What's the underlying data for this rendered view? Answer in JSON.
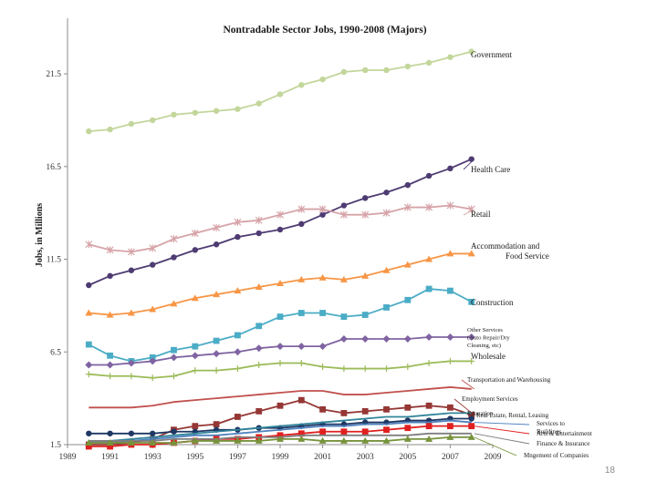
{
  "slide_number": "18",
  "chart_data": {
    "type": "line",
    "title": "Nontradable Sector Jobs, 1990-2008 (Majors)",
    "ylabel": "Jobs, in Millions",
    "xlabel": "",
    "xlim": [
      1989,
      2009
    ],
    "ylim": [
      1.5,
      24.5
    ],
    "x_ticks": [
      1989,
      1991,
      1993,
      1995,
      1997,
      1999,
      2001,
      2003,
      2005,
      2007,
      2009
    ],
    "y_ticks": [
      1.5,
      6.5,
      11.5,
      16.5,
      21.5
    ],
    "y_tick_labels": [
      "1.5",
      "6.5",
      "11.5",
      "16.5",
      "21.5"
    ],
    "grid": false,
    "legend": "right-end labels",
    "x": [
      1990,
      1991,
      1992,
      1993,
      1994,
      1995,
      1996,
      1997,
      1998,
      1999,
      2000,
      2001,
      2002,
      2003,
      2004,
      2005,
      2006,
      2007,
      2008
    ],
    "series": [
      {
        "name": "Government",
        "color": "#c3d69b",
        "marker": "circle",
        "values": [
          18.4,
          18.5,
          18.8,
          19.0,
          19.3,
          19.4,
          19.5,
          19.6,
          19.9,
          20.4,
          20.9,
          21.2,
          21.6,
          21.7,
          21.7,
          21.9,
          22.1,
          22.4,
          22.7
        ]
      },
      {
        "name": "Health Care",
        "color": "#4e3b72",
        "marker": "circle",
        "values": [
          10.1,
          10.6,
          10.9,
          11.2,
          11.6,
          12.0,
          12.3,
          12.7,
          12.9,
          13.1,
          13.4,
          13.9,
          14.4,
          14.8,
          15.1,
          15.5,
          16.0,
          16.4,
          16.9
        ]
      },
      {
        "name": "Retail",
        "color": "#d6a3a8",
        "marker": "star",
        "values": [
          12.3,
          12.0,
          11.9,
          12.1,
          12.6,
          12.9,
          13.2,
          13.5,
          13.6,
          13.9,
          14.2,
          14.2,
          13.9,
          13.9,
          14.0,
          14.3,
          14.3,
          14.4,
          14.2
        ]
      },
      {
        "name": "Accommodation and Food Service",
        "color": "#f79646",
        "marker": "triangle",
        "values": [
          8.6,
          8.5,
          8.6,
          8.8,
          9.1,
          9.4,
          9.6,
          9.8,
          10.0,
          10.2,
          10.4,
          10.5,
          10.4,
          10.6,
          10.9,
          11.2,
          11.5,
          11.8,
          11.8
        ]
      },
      {
        "name": "Construction",
        "color": "#4bacc6",
        "marker": "square",
        "values": [
          6.9,
          6.3,
          6.0,
          6.2,
          6.6,
          6.8,
          7.1,
          7.4,
          7.9,
          8.4,
          8.6,
          8.6,
          8.4,
          8.5,
          8.9,
          9.3,
          9.9,
          9.8,
          9.2
        ]
      },
      {
        "name": "Other Services (Auto Repair/Dry Cleaning, etc)",
        "color": "#8064a2",
        "marker": "diamond",
        "values": [
          5.8,
          5.8,
          5.9,
          6.0,
          6.2,
          6.3,
          6.4,
          6.5,
          6.7,
          6.8,
          6.8,
          6.8,
          7.2,
          7.2,
          7.2,
          7.2,
          7.3,
          7.3,
          7.3
        ]
      },
      {
        "name": "Wholesale",
        "color": "#9bbb59",
        "marker": "plus",
        "values": [
          5.3,
          5.2,
          5.2,
          5.1,
          5.2,
          5.5,
          5.5,
          5.6,
          5.8,
          5.9,
          5.9,
          5.7,
          5.6,
          5.6,
          5.6,
          5.7,
          5.9,
          6.0,
          6.0
        ]
      },
      {
        "name": "Transportation and Warehousing",
        "color": "#c0504d",
        "marker": "none",
        "values": [
          3.5,
          3.5,
          3.5,
          3.6,
          3.8,
          3.9,
          4.0,
          4.1,
          4.2,
          4.3,
          4.4,
          4.4,
          4.2,
          4.2,
          4.3,
          4.4,
          4.5,
          4.6,
          4.5
        ]
      },
      {
        "name": "Employment Services",
        "color": "#953735",
        "marker": "square",
        "values": [
          1.5,
          1.5,
          1.6,
          1.8,
          2.3,
          2.5,
          2.6,
          3.0,
          3.3,
          3.6,
          3.9,
          3.4,
          3.2,
          3.3,
          3.4,
          3.5,
          3.6,
          3.5,
          3.1
        ]
      },
      {
        "name": "Education",
        "color": "#1f3864",
        "marker": "circle",
        "values": [
          2.1,
          2.1,
          2.1,
          2.1,
          2.2,
          2.2,
          2.3,
          2.3,
          2.4,
          2.4,
          2.5,
          2.6,
          2.6,
          2.7,
          2.7,
          2.8,
          2.8,
          2.9,
          2.9
        ]
      },
      {
        "name": "Real Estate, Rental, Leasing",
        "color": "#31859b",
        "marker": "none",
        "values": [
          1.7,
          1.7,
          1.8,
          1.9,
          2.0,
          2.1,
          2.2,
          2.3,
          2.4,
          2.5,
          2.6,
          2.7,
          2.8,
          2.9,
          3.0,
          3.0,
          3.1,
          3.2,
          3.2
        ]
      },
      {
        "name": "Services to Buildings",
        "color": "#4f81bd",
        "marker": "none",
        "values": [
          1.6,
          1.6,
          1.7,
          1.8,
          1.9,
          2.0,
          2.0,
          2.1,
          2.2,
          2.3,
          2.4,
          2.5,
          2.5,
          2.6,
          2.6,
          2.7,
          2.7,
          2.8,
          2.7
        ]
      },
      {
        "name": "Arts & Entertainment",
        "color": "#e02020",
        "marker": "square",
        "values": [
          1.4,
          1.4,
          1.5,
          1.5,
          1.6,
          1.7,
          1.8,
          1.8,
          1.9,
          2.0,
          2.1,
          2.2,
          2.2,
          2.2,
          2.3,
          2.4,
          2.5,
          2.5,
          2.5
        ]
      },
      {
        "name": "Finance & Insurance",
        "color": "#7f7f7f",
        "marker": "none",
        "values": [
          1.7,
          1.7,
          1.7,
          1.7,
          1.8,
          1.8,
          1.8,
          1.9,
          1.9,
          1.9,
          2.0,
          2.0,
          2.0,
          2.0,
          2.0,
          2.0,
          2.1,
          2.1,
          2.1
        ]
      },
      {
        "name": "Mngement of Companies",
        "color": "#77933c",
        "marker": "triangle",
        "values": [
          1.6,
          1.6,
          1.6,
          1.6,
          1.6,
          1.7,
          1.7,
          1.7,
          1.7,
          1.8,
          1.8,
          1.7,
          1.7,
          1.7,
          1.7,
          1.8,
          1.8,
          1.9,
          1.9
        ]
      }
    ]
  }
}
